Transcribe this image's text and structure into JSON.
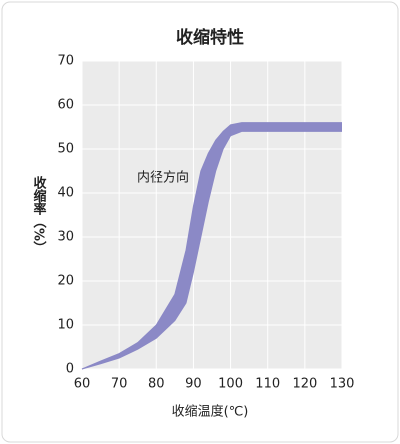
{
  "chart_data": {
    "type": "band",
    "title": "收缩特性",
    "x_label": "收缩温度(℃)",
    "y_label": "收缩率（%）",
    "annotation": "内径方向",
    "x": [
      60,
      65,
      70,
      75,
      80,
      85,
      88,
      90,
      92,
      94,
      96,
      98,
      100,
      103,
      110,
      130
    ],
    "series": [
      {
        "color": "#8b89c6",
        "values": [
          0,
          1.8,
          3.5,
          6,
          10,
          17,
          27,
          37,
          45,
          49,
          52,
          54,
          55.5,
          56,
          56,
          56
        ]
      },
      {
        "color": "#8b89c6",
        "values": [
          0,
          1.2,
          2.5,
          4.5,
          7,
          11,
          15,
          22,
          30,
          38,
          45,
          50,
          53,
          54,
          54,
          54
        ]
      }
    ],
    "xlim": [
      60,
      130
    ],
    "xticks": [
      60,
      70,
      80,
      90,
      100,
      110,
      120,
      130
    ],
    "ylim": [
      0,
      70
    ],
    "yticks": [
      0,
      10,
      20,
      30,
      40,
      50,
      60,
      70
    ],
    "grid": true
  }
}
